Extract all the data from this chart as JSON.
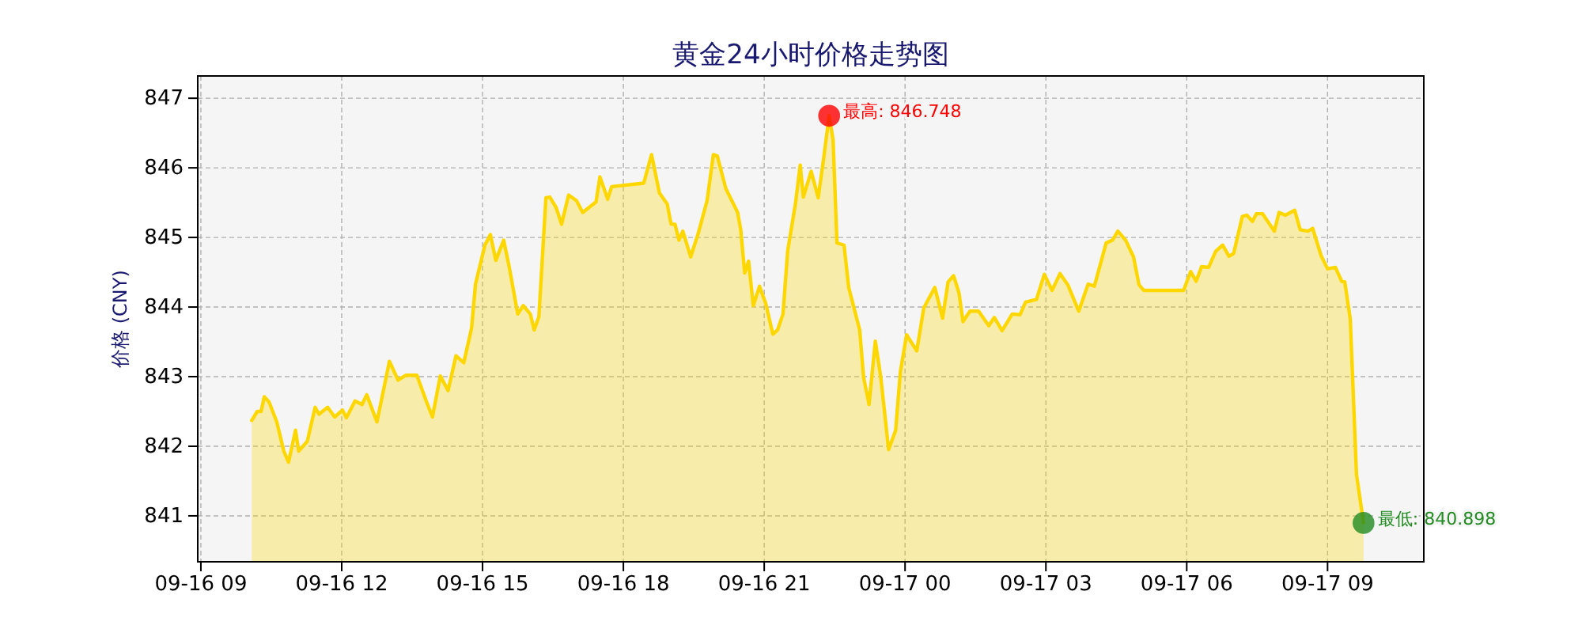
{
  "chart_data": {
    "type": "area",
    "title": "黄金24小时价格走势图",
    "ylabel": "价格 (CNY)",
    "xlim": [
      "--09-16T08:56",
      "--09-17T11:03"
    ],
    "ylim": [
      840.34,
      847.32
    ],
    "xticks": [
      {
        "value": "--09-16T09:00",
        "label": "09-16 09"
      },
      {
        "value": "--09-16T12:00",
        "label": "09-16 12"
      },
      {
        "value": "--09-16T15:00",
        "label": "09-16 15"
      },
      {
        "value": "--09-16T18:00",
        "label": "09-16 18"
      },
      {
        "value": "--09-16T21:00",
        "label": "09-16 21"
      },
      {
        "value": "--09-17T00:00",
        "label": "09-17 00"
      },
      {
        "value": "--09-17T03:00",
        "label": "09-17 03"
      },
      {
        "value": "--09-17T06:00",
        "label": "09-17 06"
      },
      {
        "value": "--09-17T09:00",
        "label": "09-17 09"
      }
    ],
    "yticks": [
      841,
      842,
      843,
      844,
      845,
      846,
      847
    ],
    "grid": true,
    "series": [
      {
        "color": "#ffd700",
        "x": [
          "--09-16T10:05",
          "--09-16T10:12",
          "--09-16T10:17",
          "--09-16T10:21",
          "--09-16T10:27",
          "--09-16T10:37",
          "--09-16T10:46",
          "--09-16T10:52",
          "--09-16T11:01",
          "--09-16T11:05",
          "--09-16T11:16",
          "--09-16T11:26",
          "--09-16T11:31",
          "--09-16T11:42",
          "--09-16T11:51",
          "--09-16T12:01",
          "--09-16T12:06",
          "--09-16T12:17",
          "--09-16T12:26",
          "--09-16T12:32",
          "--09-16T12:45",
          "--09-16T12:52",
          "--09-16T13:01",
          "--09-16T13:12",
          "--09-16T13:22",
          "--09-16T13:36",
          "--09-16T13:48",
          "--09-16T13:56",
          "--09-16T14:06",
          "--09-16T14:16",
          "--09-16T14:26",
          "--09-16T14:36",
          "--09-16T14:46",
          "--09-16T14:51",
          "--09-16T15:03",
          "--09-16T15:10",
          "--09-16T15:17",
          "--09-16T15:27",
          "--09-16T15:34",
          "--09-16T15:45",
          "--09-16T15:52",
          "--09-16T16:01",
          "--09-16T16:06",
          "--09-16T16:12",
          "--09-16T16:21",
          "--09-16T16:26",
          "--09-16T16:34",
          "--09-16T16:41",
          "--09-16T16:50",
          "--09-16T17:00",
          "--09-16T17:08",
          "--09-16T17:25",
          "--09-16T17:30",
          "--09-16T17:40",
          "--09-16T17:45",
          "--09-16T18:26",
          "--09-16T18:36",
          "--09-16T18:46",
          "--09-16T18:56",
          "--09-16T19:01",
          "--09-16T19:06",
          "--09-16T19:11",
          "--09-16T19:16",
          "--09-16T19:26",
          "--09-16T19:36",
          "--09-16T19:47",
          "--09-16T19:55",
          "--09-16T20:00",
          "--09-16T20:11",
          "--09-16T20:26",
          "--09-16T20:30",
          "--09-16T20:35",
          "--09-16T20:40",
          "--09-16T20:46",
          "--09-16T20:54",
          "--09-16T21:02",
          "--09-16T21:11",
          "--09-16T21:17",
          "--09-16T21:24",
          "--09-16T21:30",
          "--09-16T21:40",
          "--09-16T21:46",
          "--09-16T21:50",
          "--09-16T22:00",
          "--09-16T22:09",
          "--09-16T22:16",
          "--09-16T22:23",
          "--09-16T22:28",
          "--09-16T22:33",
          "--09-16T22:42",
          "--09-16T22:48",
          "--09-16T23:02",
          "--09-16T23:07",
          "--09-16T23:14",
          "--09-16T23:22",
          "--09-16T23:29",
          "--09-16T23:39",
          "--09-16T23:48",
          "--09-16T23:54",
          "--09-17T00:02",
          "--09-17T00:15",
          "--09-17T00:24",
          "--09-17T00:38",
          "--09-17T00:48",
          "--09-17T00:55",
          "--09-17T01:02",
          "--09-17T01:09",
          "--09-17T01:14",
          "--09-17T01:23",
          "--09-17T01:34",
          "--09-17T01:47",
          "--09-17T01:54",
          "--09-17T02:04",
          "--09-17T02:17",
          "--09-17T02:27",
          "--09-17T02:34",
          "--09-17T02:48",
          "--09-17T02:58",
          "--09-17T03:08",
          "--09-17T03:18",
          "--09-17T03:28",
          "--09-17T03:42",
          "--09-17T03:54",
          "--09-17T04:02",
          "--09-17T04:17",
          "--09-17T04:25",
          "--09-17T04:32",
          "--09-17T04:42",
          "--09-17T04:52",
          "--09-17T04:59",
          "--09-17T05:05",
          "--09-17T05:56",
          "--09-17T06:05",
          "--09-17T06:12",
          "--09-17T06:19",
          "--09-17T06:28",
          "--09-17T06:37",
          "--09-17T06:46",
          "--09-17T06:54",
          "--09-17T07:00",
          "--09-17T07:11",
          "--09-17T07:17",
          "--09-17T07:24",
          "--09-17T07:29",
          "--09-17T07:37",
          "--09-17T07:52",
          "--09-17T07:58",
          "--09-17T08:06",
          "--09-17T08:18",
          "--09-17T08:25",
          "--09-17T08:35",
          "--09-17T08:41",
          "--09-17T08:52",
          "--09-17T09:00",
          "--09-17T09:10",
          "--09-17T09:18",
          "--09-17T09:22",
          "--09-17T09:29",
          "--09-17T09:37",
          "--09-17T09:46"
        ],
        "values": [
          842.37,
          842.5,
          842.5,
          842.71,
          842.64,
          842.35,
          841.93,
          841.77,
          842.23,
          841.93,
          842.07,
          842.56,
          842.46,
          842.56,
          842.42,
          842.52,
          842.41,
          842.65,
          842.6,
          842.74,
          842.35,
          842.73,
          843.22,
          842.95,
          843.02,
          843.02,
          842.65,
          842.42,
          843.01,
          842.8,
          843.3,
          843.2,
          843.7,
          844.33,
          844.89,
          845.04,
          844.67,
          844.96,
          844.58,
          843.9,
          844.02,
          843.9,
          843.67,
          843.86,
          845.57,
          845.58,
          845.43,
          845.19,
          845.61,
          845.53,
          845.36,
          845.51,
          845.87,
          845.55,
          845.73,
          845.78,
          846.19,
          845.64,
          845.48,
          845.19,
          845.19,
          844.96,
          845.09,
          844.72,
          845.07,
          845.53,
          846.19,
          846.17,
          845.7,
          845.36,
          845.11,
          844.49,
          844.66,
          844.02,
          844.3,
          844.05,
          843.61,
          843.67,
          843.9,
          844.81,
          845.49,
          846.04,
          845.58,
          845.95,
          845.57,
          846.14,
          846.748,
          846.4,
          844.92,
          844.89,
          844.28,
          843.67,
          842.99,
          842.6,
          843.51,
          842.99,
          841.95,
          842.23,
          843.07,
          843.6,
          843.37,
          843.99,
          844.28,
          843.84,
          844.36,
          844.45,
          844.2,
          843.79,
          843.94,
          843.94,
          843.73,
          843.85,
          843.66,
          843.9,
          843.89,
          844.07,
          844.11,
          844.47,
          844.24,
          844.48,
          844.32,
          843.94,
          844.33,
          844.3,
          844.92,
          844.96,
          845.09,
          844.96,
          844.72,
          844.32,
          844.24,
          844.24,
          844.51,
          844.37,
          844.58,
          844.57,
          844.8,
          844.89,
          844.73,
          844.77,
          845.3,
          845.32,
          845.23,
          845.34,
          845.34,
          845.09,
          845.36,
          845.32,
          845.39,
          845.11,
          845.09,
          845.13,
          844.73,
          844.55,
          844.57,
          844.37,
          844.36,
          843.83,
          841.59,
          840.898
        ]
      },
      {
        "type": "scatter",
        "color": "#ff0000",
        "marker": "circle",
        "x": [
          "--09-16T22:23"
        ],
        "values": [
          846.748
        ]
      },
      {
        "type": "scatter",
        "color": "#228b22",
        "marker": "circle",
        "x": [
          "--09-17T09:46"
        ],
        "values": [
          840.898
        ]
      }
    ],
    "annotations": [
      {
        "text": "最高: 846.748",
        "x": "--09-16T22:23",
        "y": 846.748
      },
      {
        "text": "最低: 840.898",
        "x": "--09-17T09:46",
        "y": 840.898
      }
    ]
  }
}
